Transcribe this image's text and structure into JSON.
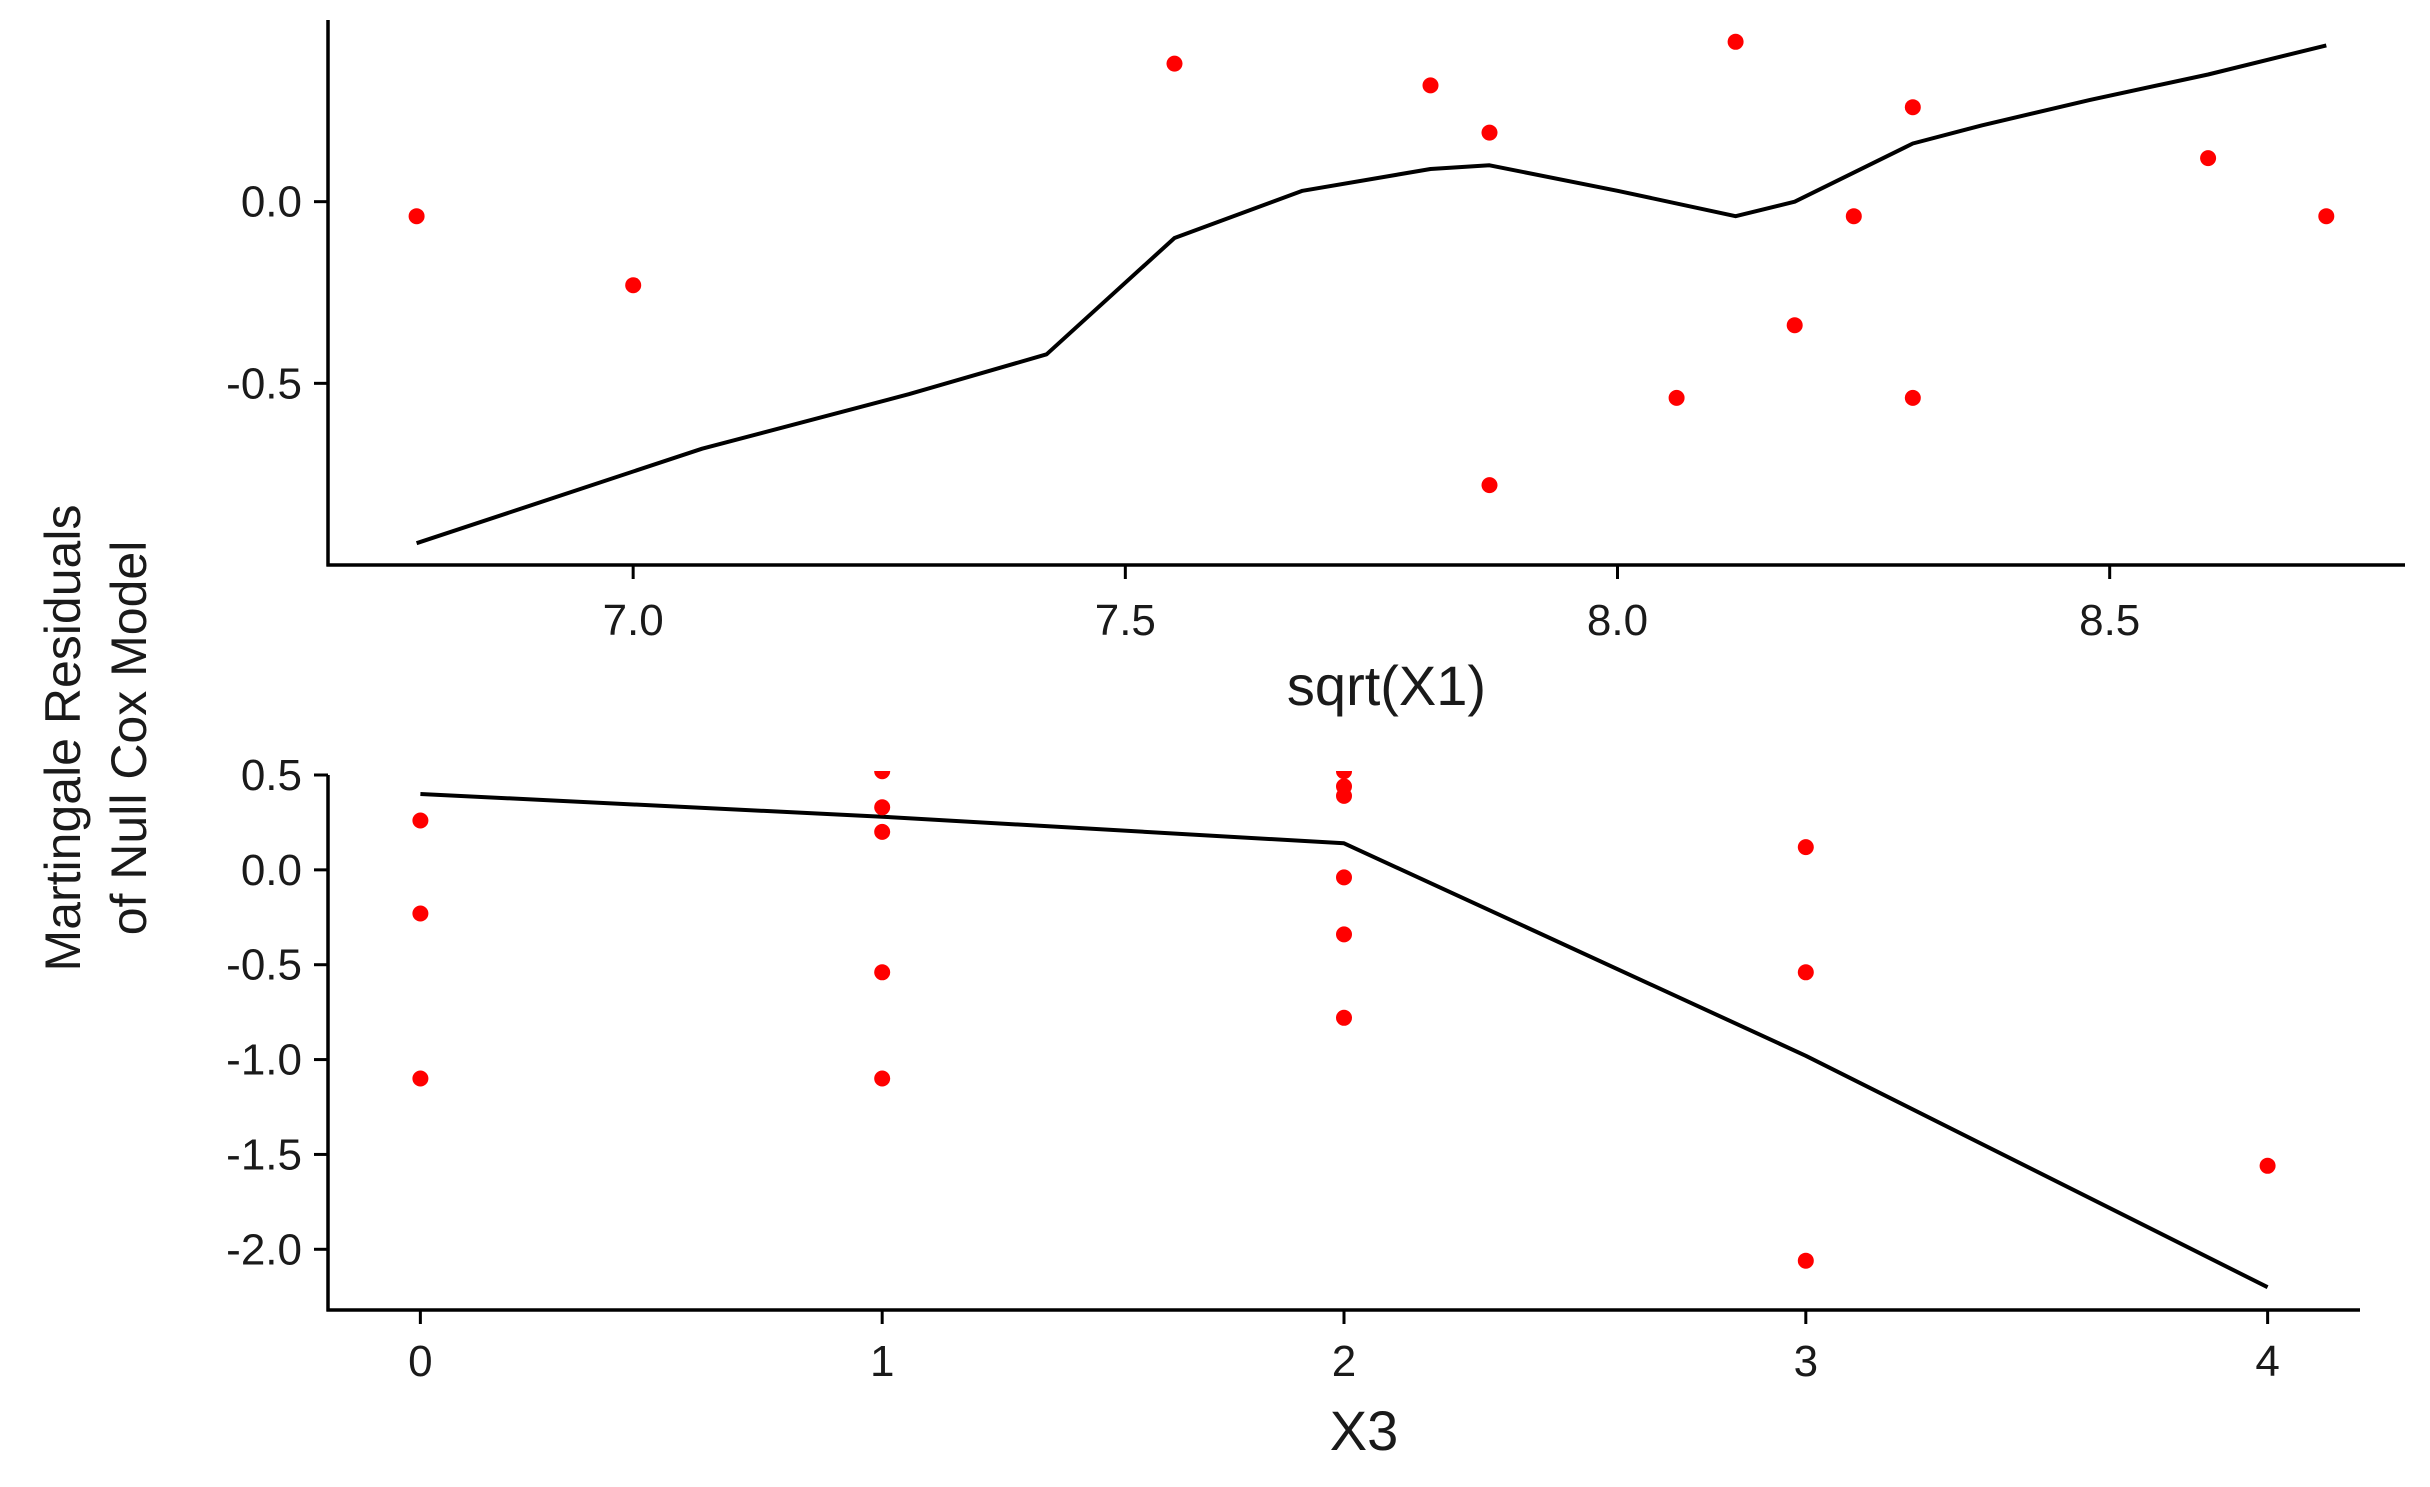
{
  "y_axis_title": {
    "line1": "Martingale Residuals",
    "line2": "of Null Cox Model"
  },
  "colors": {
    "points": "#ff0000",
    "fit_line": "#000000",
    "axis": "#000000"
  },
  "chart_data": [
    {
      "type": "scatter",
      "title": "",
      "xlabel": "sqrt(X1)",
      "ylabel": "Martingale Residuals of Null Cox Model",
      "xlim": [
        6.69,
        8.8
      ],
      "ylim": [
        -1.0,
        0.5
      ],
      "x_ticks": [
        7.0,
        7.5,
        8.0,
        8.5
      ],
      "x_tick_labels": [
        "7.0",
        "7.5",
        "8.0",
        "8.5"
      ],
      "y_ticks": [
        0.0,
        -0.5
      ],
      "y_tick_labels": [
        "0.0",
        "-0.5"
      ],
      "grid": false,
      "series": [
        {
          "points": [
            {
              "x": 6.78,
              "y": -0.04
            },
            {
              "x": 7.0,
              "y": -0.23
            },
            {
              "x": 7.55,
              "y": 0.38
            },
            {
              "x": 7.81,
              "y": 0.32
            },
            {
              "x": 7.87,
              "y": 0.19
            },
            {
              "x": 7.87,
              "y": -0.78
            },
            {
              "x": 8.06,
              "y": -0.54
            },
            {
              "x": 8.12,
              "y": 0.44
            },
            {
              "x": 8.18,
              "y": -0.34
            },
            {
              "x": 8.24,
              "y": -0.04
            },
            {
              "x": 8.3,
              "y": 0.26
            },
            {
              "x": 8.3,
              "y": -0.54
            },
            {
              "x": 8.6,
              "y": 0.12
            },
            {
              "x": 8.72,
              "y": -0.04
            }
          ]
        },
        {
          "style": "line",
          "points": [
            {
              "x": 6.78,
              "y": -0.94
            },
            {
              "x": 7.07,
              "y": -0.68
            },
            {
              "x": 7.28,
              "y": -0.53
            },
            {
              "x": 7.42,
              "y": -0.42
            },
            {
              "x": 7.55,
              "y": -0.1
            },
            {
              "x": 7.68,
              "y": 0.03
            },
            {
              "x": 7.81,
              "y": 0.09
            },
            {
              "x": 7.87,
              "y": 0.1
            },
            {
              "x": 8.0,
              "y": 0.03
            },
            {
              "x": 8.12,
              "y": -0.04
            },
            {
              "x": 8.18,
              "y": 0.0
            },
            {
              "x": 8.3,
              "y": 0.16
            },
            {
              "x": 8.37,
              "y": 0.21
            },
            {
              "x": 8.48,
              "y": 0.28
            },
            {
              "x": 8.6,
              "y": 0.35
            },
            {
              "x": 8.72,
              "y": 0.43
            }
          ]
        }
      ]
    },
    {
      "type": "scatter",
      "title": "",
      "xlabel": "X3",
      "ylabel": "Martingale Residuals of Null Cox Model",
      "xlim": [
        -0.2,
        4.2
      ],
      "ylim": [
        -2.32,
        0.5
      ],
      "x_ticks": [
        0,
        1,
        2,
        3,
        4
      ],
      "x_tick_labels": [
        "0",
        "1",
        "2",
        "3",
        "4"
      ],
      "y_ticks": [
        0.5,
        0.0,
        -0.5,
        -1.0,
        -1.5,
        -2.0
      ],
      "y_tick_labels": [
        "0.5",
        "0.0",
        "-0.5",
        "-1.0",
        "-1.5",
        "-2.0"
      ],
      "grid": false,
      "series": [
        {
          "points": [
            {
              "x": 0,
              "y": 0.26
            },
            {
              "x": 0,
              "y": -0.23
            },
            {
              "x": 0,
              "y": -1.1
            },
            {
              "x": 1,
              "y": 0.52
            },
            {
              "x": 1,
              "y": 0.33
            },
            {
              "x": 1,
              "y": 0.2
            },
            {
              "x": 1,
              "y": -0.54
            },
            {
              "x": 1,
              "y": -1.1
            },
            {
              "x": 2,
              "y": 0.52
            },
            {
              "x": 2,
              "y": 0.44
            },
            {
              "x": 2,
              "y": 0.39
            },
            {
              "x": 2,
              "y": -0.04
            },
            {
              "x": 2,
              "y": -0.34
            },
            {
              "x": 2,
              "y": -0.78
            },
            {
              "x": 3,
              "y": 0.12
            },
            {
              "x": 3,
              "y": -0.54
            },
            {
              "x": 3,
              "y": -2.06
            },
            {
              "x": 4,
              "y": -1.56
            }
          ]
        },
        {
          "style": "line",
          "points": [
            {
              "x": 0,
              "y": 0.4
            },
            {
              "x": 1,
              "y": 0.28
            },
            {
              "x": 2,
              "y": 0.14
            },
            {
              "x": 3,
              "y": -0.98
            },
            {
              "x": 4,
              "y": -2.2
            }
          ]
        }
      ]
    }
  ]
}
